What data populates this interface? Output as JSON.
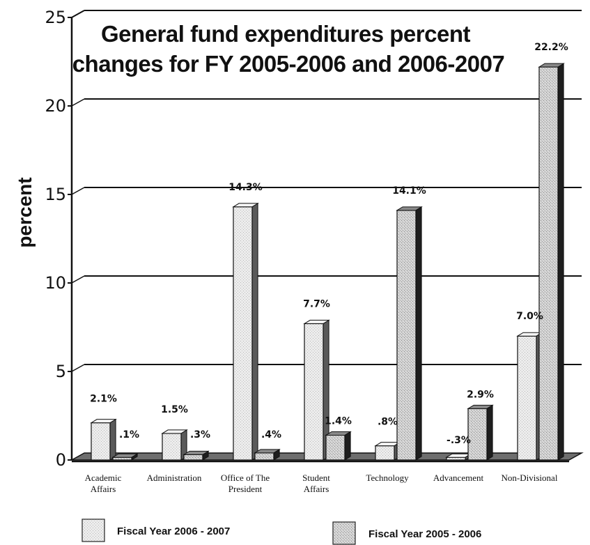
{
  "chart_data": {
    "type": "bar",
    "title": "General fund expenditures percent changes for FY 2005-2006 and 2006-2007",
    "title_lines": [
      "General fund expenditures percent",
      "changes for FY 2005-2006 and 2006-2007"
    ],
    "ylabel": "percent",
    "xlabel": "",
    "ylim": [
      0,
      25
    ],
    "yticks": [
      "0",
      "5",
      "10",
      "15",
      "20",
      "25"
    ],
    "grid": true,
    "legend_position": "bottom",
    "categories": [
      [
        "Academic",
        "Affairs"
      ],
      [
        "Administration"
      ],
      [
        "Office of The",
        "President"
      ],
      [
        "Student",
        "Affairs"
      ],
      [
        "Technology"
      ],
      [
        "Advancement"
      ],
      [
        "Non-Divisional"
      ]
    ],
    "series": [
      {
        "name": "Fiscal Year 2006 - 2007",
        "color": "#e2e2e2",
        "values": [
          2.1,
          1.5,
          14.3,
          7.7,
          0.8,
          -0.3,
          7.0
        ],
        "labels": [
          "2.1%",
          "1.5%",
          "14.3%",
          "7.7%",
          ".8%",
          "-.3%",
          "7.0%"
        ]
      },
      {
        "name": "Fiscal Year 2005 - 2006",
        "color": "#c8c8c8",
        "values": [
          0.1,
          0.3,
          0.4,
          1.4,
          14.1,
          2.9,
          22.2
        ],
        "labels": [
          ".1%",
          ".3%",
          ".4%",
          "1.4%",
          "14.1%",
          "2.9%",
          "22.2%"
        ]
      }
    ]
  }
}
